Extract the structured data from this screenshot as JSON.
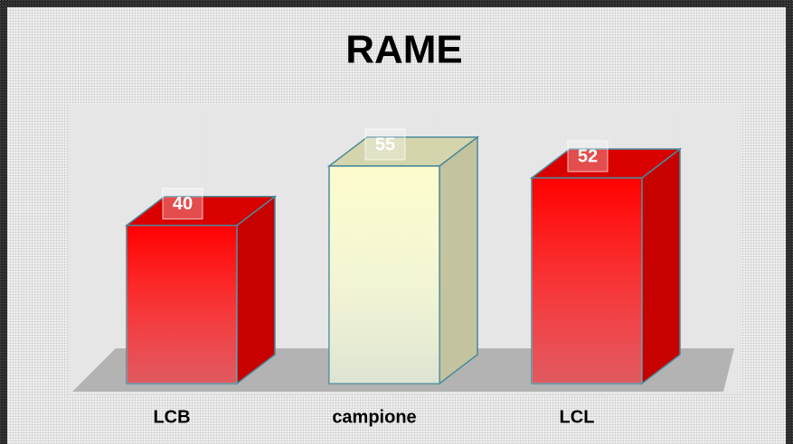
{
  "chart_data": {
    "type": "bar3d",
    "title": "RAME",
    "categories": [
      "LCB",
      "campione",
      "LCL"
    ],
    "values": [
      40,
      55,
      52
    ],
    "colors": [
      "#ff0000",
      "#fafacc",
      "#ff0000"
    ]
  }
}
